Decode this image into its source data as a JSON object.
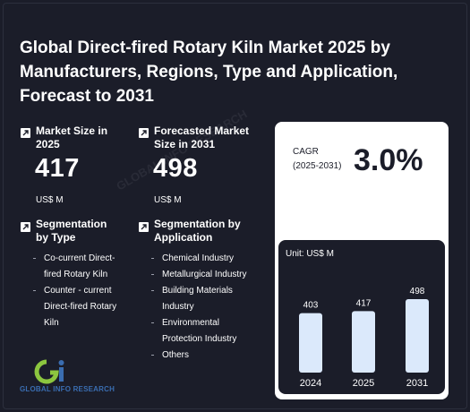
{
  "title": "Global Direct-fired Rotary Kiln Market 2025 by Manufacturers, Regions, Type and Application, Forecast to 2031",
  "market_size": {
    "label": "Market Size in 2025",
    "value": "417",
    "unit": "US$ M"
  },
  "forecast": {
    "label": "Forecasted Market Size in 2031",
    "value": "498",
    "unit": "US$ M"
  },
  "seg_type": {
    "label": "Segmentation by Type",
    "items": [
      "Co-current Direct-fired Rotary Kiln",
      "Counter - current Direct-fired Rotary Kiln"
    ]
  },
  "seg_app": {
    "label": "Segmentation by Application",
    "items": [
      "Chemical Industry",
      "Metallurgical Industry",
      "Building Materials Industry",
      "Environmental Protection Industry",
      "Others"
    ]
  },
  "cagr": {
    "label": "CAGR",
    "period": "(2025-2031)",
    "value": "3.0%"
  },
  "chart_data": {
    "type": "bar",
    "unit_label": "Unit: US$ M",
    "categories": [
      "2024",
      "2025",
      "2031"
    ],
    "values": [
      403,
      417,
      498
    ],
    "ylim": [
      0,
      498
    ]
  },
  "logo": {
    "text": "GLOBAL INFO RESEARCH"
  },
  "colors": {
    "bg": "#1b1d29",
    "bar": "#dbe9fb",
    "logo_green": "#8cc63f",
    "logo_blue": "#3a6db0"
  }
}
